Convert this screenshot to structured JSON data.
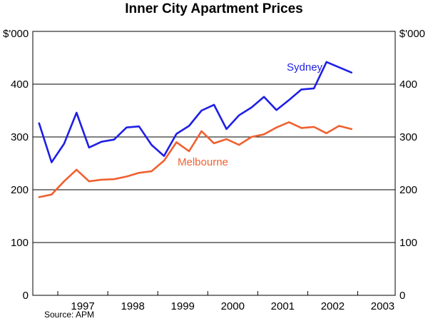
{
  "chart_data": {
    "type": "line",
    "title": "Inner City Apartment Prices",
    "unit_left": "$'000",
    "unit_right": "$'000",
    "ylim": [
      0,
      500
    ],
    "yticks": [
      0,
      100,
      200,
      300,
      400
    ],
    "grid": true,
    "x_labels": [
      "1997",
      "1998",
      "1999",
      "2000",
      "2001",
      "2002",
      "2003"
    ],
    "x_range": [
      1996.5,
      2003.75
    ],
    "x": [
      1996.625,
      1996.875,
      1997.125,
      1997.375,
      1997.625,
      1997.875,
      1998.125,
      1998.375,
      1998.625,
      1998.875,
      1999.125,
      1999.375,
      1999.625,
      1999.875,
      2000.125,
      2000.375,
      2000.625,
      2000.875,
      2001.125,
      2001.375,
      2001.625,
      2001.875,
      2002.125,
      2002.375,
      2002.625,
      2002.875,
      2003.125
    ],
    "series": [
      {
        "name": "Sydney",
        "color": "#1f1fe6",
        "values": [
          326,
          252,
          287,
          346,
          280,
          291,
          295,
          318,
          320,
          285,
          264,
          306,
          321,
          350,
          361,
          315,
          341,
          356,
          376,
          351,
          370,
          390,
          392,
          442,
          432,
          422,
          null
        ]
      },
      {
        "name": "Melbourne",
        "color": "#f06030",
        "values": [
          186,
          191,
          216,
          238,
          216,
          219,
          220,
          225,
          232,
          235,
          255,
          290,
          273,
          311,
          288,
          296,
          285,
          300,
          305,
          318,
          328,
          317,
          319,
          307,
          321,
          315,
          null
        ]
      }
    ],
    "source": "Source: APM"
  }
}
